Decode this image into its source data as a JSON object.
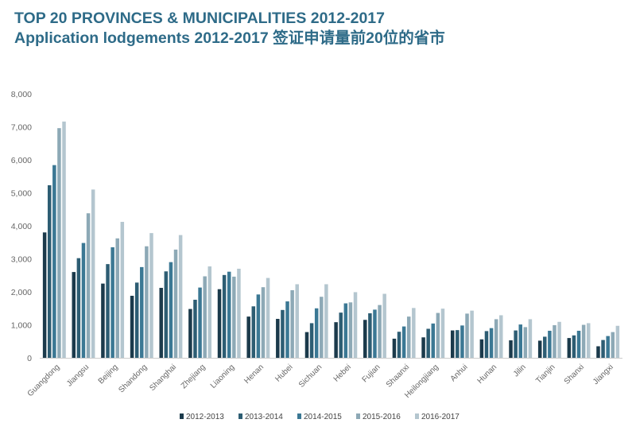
{
  "header": {
    "title_line1": "TOP 20 PROVINCES & MUNICIPALITIES 2012-2017",
    "title_line2": "Application lodgements 2012-2017 签证申请量前20位的省市"
  },
  "chart_data": {
    "type": "bar",
    "categories": [
      "Guangdong",
      "Jiangsu",
      "Beijing",
      "Shandong",
      "Shanghai",
      "Zhejiang",
      "Liaoning",
      "Henan",
      "Hubei",
      "Sichuan",
      "Hebei",
      "Fujian",
      "Shaanxi",
      "Heilongjiang",
      "Anhui",
      "Hunan",
      "Jilin",
      "Tianjin",
      "Shanxi",
      "Jiangxi"
    ],
    "series": [
      {
        "name": "2012-2013",
        "color": "#1b3a4b",
        "values": [
          3800,
          2600,
          2250,
          1880,
          2120,
          1480,
          2080,
          1250,
          1180,
          780,
          1080,
          1150,
          580,
          620,
          830,
          560,
          530,
          520,
          600,
          350
        ]
      },
      {
        "name": "2013-2014",
        "color": "#2d5d73",
        "values": [
          5230,
          3020,
          2840,
          2280,
          2620,
          1760,
          2510,
          1560,
          1450,
          1050,
          1370,
          1350,
          790,
          880,
          840,
          810,
          830,
          640,
          680,
          540
        ]
      },
      {
        "name": "2014-2015",
        "color": "#3b7894",
        "values": [
          5840,
          3480,
          3350,
          2750,
          2900,
          2130,
          2610,
          1920,
          1710,
          1500,
          1650,
          1460,
          950,
          1040,
          980,
          900,
          1010,
          820,
          820,
          660
        ]
      },
      {
        "name": "2015-2016",
        "color": "#8da9b6",
        "values": [
          6960,
          4380,
          3620,
          3380,
          3280,
          2470,
          2460,
          2140,
          2050,
          1850,
          1680,
          1600,
          1250,
          1360,
          1340,
          1170,
          930,
          990,
          1000,
          780
        ]
      },
      {
        "name": "2016-2017",
        "color": "#b4c6cf",
        "values": [
          7160,
          5100,
          4120,
          3780,
          3720,
          2770,
          2700,
          2420,
          2230,
          2230,
          1990,
          1940,
          1510,
          1490,
          1430,
          1290,
          1170,
          1090,
          1050,
          970
        ]
      }
    ],
    "ylim": [
      0,
      8000
    ],
    "yticks": [
      "0",
      "1,000",
      "2,000",
      "3,000",
      "4,000",
      "5,000",
      "6,000",
      "7,000",
      "8,000"
    ],
    "grid": false,
    "legend": "bottom"
  }
}
